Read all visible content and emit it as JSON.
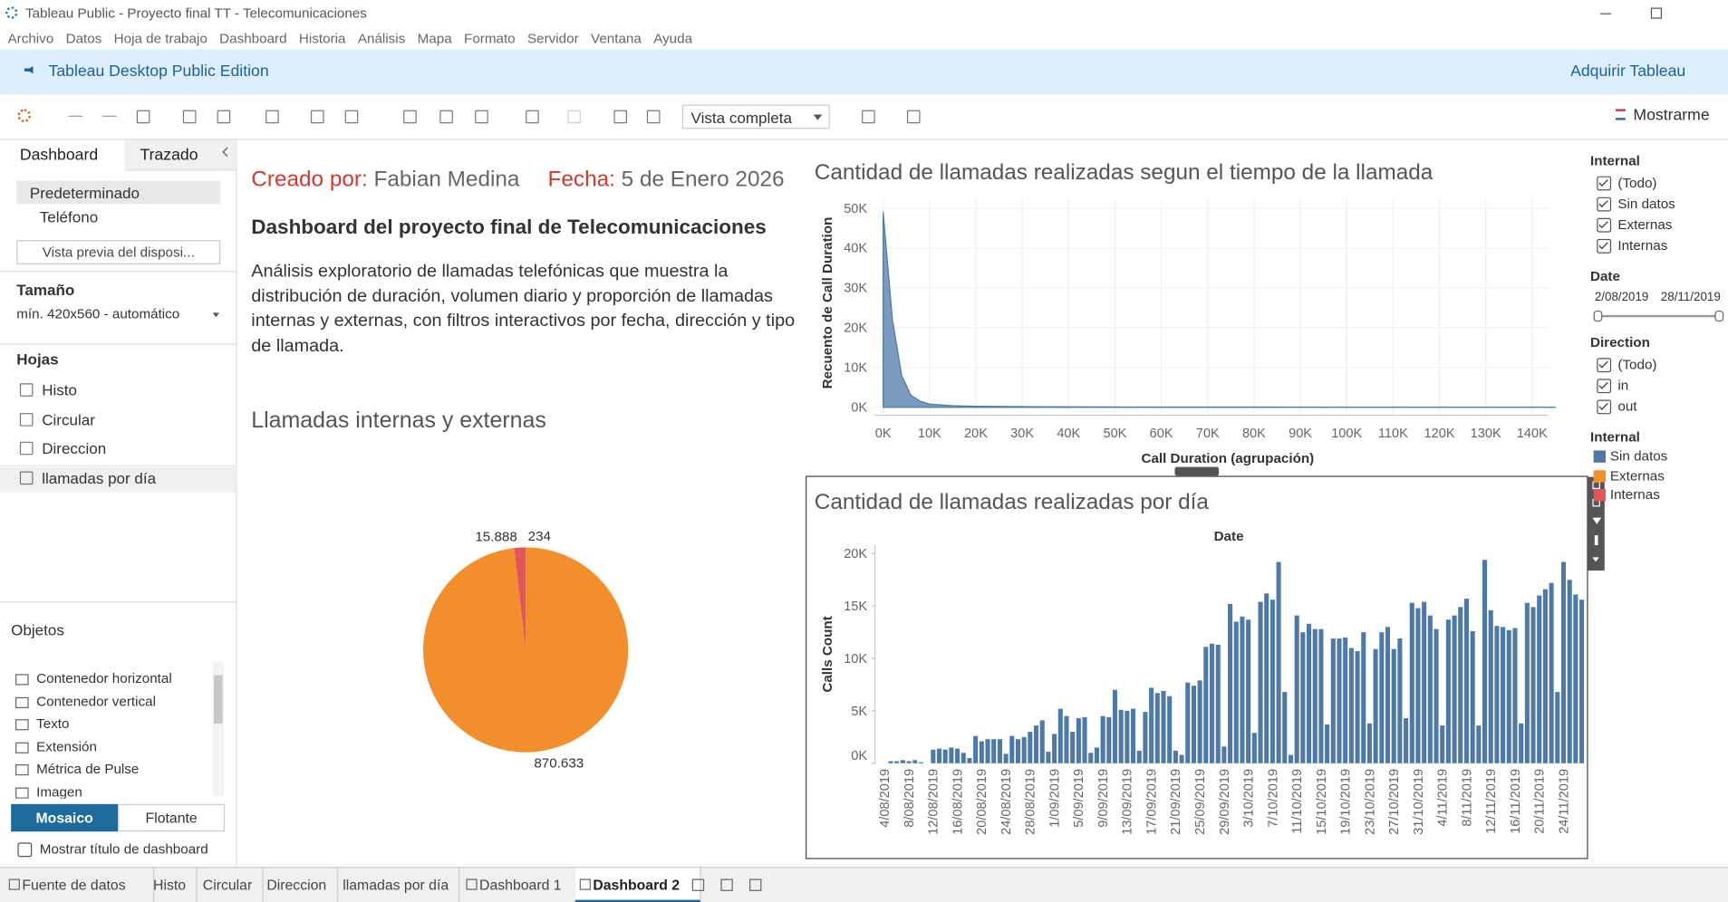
{
  "window": {
    "title": "Tableau Public - Proyecto final TT - Telecomunicaciones"
  },
  "menu": [
    "Archivo",
    "Datos",
    "Hoja de trabajo",
    "Dashboard",
    "Historia",
    "Análisis",
    "Mapa",
    "Formato",
    "Servidor",
    "Ventana",
    "Ayuda"
  ],
  "banner": {
    "edition": "Tableau Desktop Public Edition",
    "acquire": "Adquirir Tableau"
  },
  "toolbar": {
    "view": "Vista completa",
    "show_me": "Mostrarme"
  },
  "left_panel": {
    "tabs": [
      "Dashboard",
      "Trazado"
    ],
    "devices": [
      "Predeterminado",
      "Teléfono"
    ],
    "preview": "Vista previa del disposi...",
    "size_label": "Tamaño",
    "size_value": "mín. 420x560 - automático",
    "sheets_label": "Hojas",
    "sheets": [
      "Histo",
      "Circular",
      "Direccion",
      "llamadas por día"
    ],
    "objects_label": "Objetos",
    "objects": [
      "Contenedor horizontal",
      "Contenedor vertical",
      "Texto",
      "Extensión",
      "Métrica de Pulse",
      "Imagen"
    ],
    "modes": [
      "Mosaico",
      "Flotante"
    ],
    "show_title": "Mostrar título de dashboard"
  },
  "dashboard": {
    "created_label": "Creado por:",
    "created_value": "Fabian Medina",
    "date_label": "Fecha:",
    "date_value": "5 de Enero 2026",
    "heading": "Dashboard del proyecto final de Telecomunicaciones",
    "description": "Análisis exploratorio de llamadas telefónicas que muestra la distribución de duración, volumen diario y proporción de llamadas internas y externas, con filtros interactivos por fecha, dirección y tipo de llamada."
  },
  "filters": {
    "internal": {
      "title": "Internal",
      "options": [
        "(Todo)",
        "Sin datos",
        "Externas",
        "Internas"
      ]
    },
    "date": {
      "title": "Date",
      "start": "2/08/2019",
      "end": "28/11/2019"
    },
    "direction": {
      "title": "Direction",
      "options": [
        "(Todo)",
        "in",
        "out"
      ]
    }
  },
  "tabs": [
    "Fuente de datos",
    "Histo",
    "Circular",
    "Direccion",
    "llamadas por día",
    "Dashboard 1",
    "Dashboard 2"
  ],
  "chart_data": [
    {
      "type": "area",
      "title": "Cantidad de llamadas realizadas segun el tiempo de la llamada",
      "x_label": "Call Duration (agrupación)",
      "y_label": "Recuento de Call Duration",
      "color": "#4e79a7",
      "grid": true,
      "x": [
        0,
        2000,
        4000,
        6000,
        8000,
        10000,
        15000,
        20000,
        30000,
        40000,
        60000,
        80000,
        100000,
        120000,
        140000,
        145000
      ],
      "values": [
        49000,
        22000,
        8000,
        3000,
        1500,
        800,
        400,
        250,
        150,
        100,
        60,
        40,
        30,
        20,
        10,
        5
      ],
      "xlim": [
        -2000,
        143500
      ],
      "ylim": [
        -2000,
        52500
      ],
      "xticks": [
        {
          "value": 0,
          "label": "0K"
        },
        {
          "value": 10000,
          "label": "10K"
        },
        {
          "value": 20000,
          "label": "20K"
        },
        {
          "value": 30000,
          "label": "30K"
        },
        {
          "value": 40000,
          "label": "40K"
        },
        {
          "value": 50000,
          "label": "50K"
        },
        {
          "value": 60000,
          "label": "60K"
        },
        {
          "value": 70000,
          "label": "70K"
        },
        {
          "value": 80000,
          "label": "80K"
        },
        {
          "value": 90000,
          "label": "90K"
        },
        {
          "value": 100000,
          "label": "100K"
        },
        {
          "value": 110000,
          "label": "110K"
        },
        {
          "value": 120000,
          "label": "120K"
        },
        {
          "value": 130000,
          "label": "130K"
        },
        {
          "value": 140000,
          "label": "140K"
        }
      ],
      "yticks": [
        {
          "value": 0,
          "label": "0K"
        },
        {
          "value": 10000,
          "label": "10K"
        },
        {
          "value": 20000,
          "label": "20K"
        },
        {
          "value": 30000,
          "label": "30K"
        },
        {
          "value": 40000,
          "label": "40K"
        },
        {
          "value": 50000,
          "label": "50K"
        }
      ]
    },
    {
      "type": "pie",
      "title": "Llamadas internas y externas",
      "legend_title": "Internal",
      "categories": [
        "Sin datos",
        "Externas",
        "Internas"
      ],
      "colors": [
        "#4e79a7",
        "#f28e2b",
        "#e15759"
      ],
      "values": [
        234,
        870633,
        15888
      ],
      "value_labels": [
        "234",
        "870.633",
        "15.888"
      ]
    },
    {
      "type": "bar",
      "title": "Cantidad de llamadas realizadas por día",
      "x_label": "Date",
      "y_label": "Calls Count",
      "color": "#4e79a7",
      "grid": false,
      "categories": [
        "4/08/2019",
        null,
        null,
        null,
        "8/08/2019",
        null,
        null,
        null,
        "12/08/2019",
        null,
        null,
        null,
        "16/08/2019",
        null,
        null,
        null,
        "20/08/2019",
        null,
        null,
        null,
        "24/08/2019",
        null,
        null,
        null,
        "28/08/2019",
        null,
        null,
        null,
        "1/09/2019",
        null,
        null,
        null,
        "5/09/2019",
        null,
        null,
        null,
        "9/09/2019",
        null,
        null,
        null,
        "13/09/2019",
        null,
        null,
        null,
        "17/09/2019",
        null,
        null,
        null,
        "21/09/2019",
        null,
        null,
        null,
        "25/09/2019",
        null,
        null,
        null,
        "29/09/2019",
        null,
        null,
        null,
        "3/10/2019",
        null,
        null,
        null,
        "7/10/2019",
        null,
        null,
        null,
        "11/10/2019",
        null,
        null,
        null,
        "15/10/2019",
        null,
        null,
        null,
        "19/10/2019",
        null,
        null,
        null,
        "23/10/2019",
        null,
        null,
        null,
        "27/10/2019",
        null,
        null,
        null,
        "31/10/2019",
        null,
        null,
        null,
        "4/11/2019",
        null,
        null,
        null,
        "8/11/2019",
        null,
        null,
        null,
        "12/11/2019",
        null,
        null,
        null,
        "16/11/2019",
        null,
        null,
        null,
        "20/11/2019",
        null,
        null,
        null,
        "24/11/2019",
        null,
        null,
        null
      ],
      "values": [
        0,
        200,
        200,
        300,
        200,
        300,
        100,
        0,
        1300,
        1400,
        1300,
        1500,
        1400,
        1000,
        500,
        2600,
        2100,
        2300,
        2300,
        2300,
        900,
        2600,
        2300,
        2500,
        3000,
        3600,
        4100,
        1100,
        2800,
        5200,
        4500,
        3000,
        4300,
        4400,
        1000,
        1500,
        4500,
        4400,
        7000,
        5100,
        5000,
        5200,
        1200,
        4900,
        7200,
        6700,
        6900,
        6400,
        1200,
        800,
        7700,
        7400,
        7900,
        11100,
        11400,
        11300,
        1600,
        15200,
        13500,
        14000,
        13700,
        2900,
        15400,
        16200,
        15600,
        19200,
        6800,
        800,
        14100,
        12500,
        13300,
        12800,
        12800,
        3700,
        11900,
        11900,
        12000,
        11000,
        10700,
        12500,
        3800,
        10900,
        12500,
        13000,
        10900,
        11900,
        4300,
        15300,
        14800,
        15400,
        14100,
        12800,
        3600,
        13700,
        14100,
        14900,
        15700,
        12600,
        3600,
        19400,
        14600,
        13100,
        13000,
        12700,
        12900,
        3800,
        15300,
        14900,
        16000,
        16600,
        17200,
        6800,
        19200,
        17500,
        16100,
        15600
      ],
      "ylim": [
        0,
        20800
      ],
      "yticks": [
        {
          "value": 0,
          "label": "0K"
        },
        {
          "value": 5000,
          "label": "5K"
        },
        {
          "value": 10000,
          "label": "10K"
        },
        {
          "value": 15000,
          "label": "15K"
        },
        {
          "value": 20000,
          "label": "20K"
        }
      ]
    }
  ]
}
